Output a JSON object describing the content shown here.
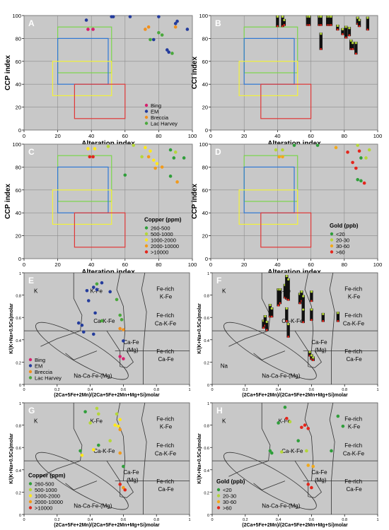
{
  "colors": {
    "panel_bg": "#c8c8c8",
    "grid": "#8c8c8c",
    "box_green": "#7bd64b",
    "box_blue": "#2f78d4",
    "box_yellow": "#f2f23a",
    "box_red": "#e03838",
    "deposits": {
      "Bing": "#d6206e",
      "EM": "#243c9c",
      "Breccia": "#f0901e",
      "Lac Harvey": "#4aa83c"
    },
    "copper": [
      "#2f9e3a",
      "#b5d63a",
      "#ffe81a",
      "#f29a1a",
      "#e3261c"
    ],
    "gold": [
      "#2f9e3a",
      "#b5d63a",
      "#f2a91a",
      "#e3261c"
    ]
  },
  "chart_data": [
    {
      "id": "A",
      "type": "scatter",
      "xlabel": "Alteration index",
      "ylabel": "CCP index",
      "xlim": [
        0,
        100
      ],
      "ylim": [
        0,
        100
      ],
      "xticks": [
        0,
        20,
        40,
        60,
        80,
        100
      ],
      "yticks": [
        0,
        20,
        40,
        60,
        80,
        100
      ],
      "legend_title": "",
      "legend_position": "bottom-right",
      "legend": [
        "Bing",
        "EM",
        "Breccia",
        "Lac Harvey"
      ],
      "points": [
        {
          "x": 38,
          "y": 88,
          "c": "Bing"
        },
        {
          "x": 41,
          "y": 88,
          "c": "Bing"
        },
        {
          "x": 37,
          "y": 96,
          "c": "EM"
        },
        {
          "x": 52,
          "y": 99,
          "c": "EM"
        },
        {
          "x": 53,
          "y": 99,
          "c": "EM"
        },
        {
          "x": 63,
          "y": 99,
          "c": "EM"
        },
        {
          "x": 80,
          "y": 99,
          "c": "EM"
        },
        {
          "x": 90,
          "y": 93,
          "c": "EM"
        },
        {
          "x": 97,
          "y": 88,
          "c": "EM"
        },
        {
          "x": 77,
          "y": 79,
          "c": "EM"
        },
        {
          "x": 85,
          "y": 70,
          "c": "EM"
        },
        {
          "x": 86,
          "y": 68,
          "c": "EM"
        },
        {
          "x": 91,
          "y": 95,
          "c": "EM"
        },
        {
          "x": 72,
          "y": 88,
          "c": "Breccia"
        },
        {
          "x": 74,
          "y": 90,
          "c": "Breccia"
        },
        {
          "x": 90,
          "y": 90,
          "c": "Breccia"
        },
        {
          "x": 80,
          "y": 85,
          "c": "Lac Harvey"
        },
        {
          "x": 82,
          "y": 83,
          "c": "Lac Harvey"
        },
        {
          "x": 75,
          "y": 79,
          "c": "Lac Harvey"
        },
        {
          "x": 88,
          "y": 67,
          "c": "Lac Harvey"
        }
      ]
    },
    {
      "id": "B",
      "type": "bar-scatter",
      "xlabel": "Alteration index",
      "ylabel": "CCI index",
      "xlim": [
        0,
        100
      ],
      "ylim": [
        0,
        100
      ],
      "xticks": [
        0,
        20,
        40,
        60,
        80,
        100
      ],
      "yticks": [
        0,
        20,
        40,
        60,
        80,
        100
      ],
      "bars": [
        {
          "x": 40,
          "y0": 100,
          "y1": 90
        },
        {
          "x": 43,
          "y0": 100,
          "y1": 90
        },
        {
          "x": 44,
          "y0": 97,
          "y1": 91
        },
        {
          "x": 58,
          "y0": 100,
          "y1": 91
        },
        {
          "x": 59,
          "y0": 100,
          "y1": 91
        },
        {
          "x": 65,
          "y0": 100,
          "y1": 91
        },
        {
          "x": 66,
          "y0": 100,
          "y1": 91
        },
        {
          "x": 70,
          "y0": 100,
          "y1": 91
        },
        {
          "x": 71,
          "y0": 100,
          "y1": 91
        },
        {
          "x": 72,
          "y0": 100,
          "y1": 91
        },
        {
          "x": 66,
          "y0": 85,
          "y1": 70
        },
        {
          "x": 76,
          "y0": 92,
          "y1": 87
        },
        {
          "x": 79,
          "y0": 89,
          "y1": 83
        },
        {
          "x": 81,
          "y0": 91,
          "y1": 80
        },
        {
          "x": 83,
          "y0": 90,
          "y1": 82
        },
        {
          "x": 84,
          "y0": 79,
          "y1": 70
        },
        {
          "x": 85,
          "y0": 77,
          "y1": 70
        },
        {
          "x": 87,
          "y0": 77,
          "y1": 66
        },
        {
          "x": 88,
          "y0": 99,
          "y1": 92
        },
        {
          "x": 89,
          "y0": 97,
          "y1": 90
        },
        {
          "x": 94,
          "y0": 99,
          "y1": 87
        }
      ]
    },
    {
      "id": "C",
      "type": "scatter",
      "xlabel": "Alteration index",
      "ylabel": "CCP index",
      "xlim": [
        0,
        100
      ],
      "ylim": [
        0,
        100
      ],
      "xticks": [
        0,
        20,
        40,
        60,
        80,
        100
      ],
      "yticks": [
        0,
        20,
        40,
        60,
        80,
        100
      ],
      "legend_title": "Copper (ppm)",
      "legend_position": "bottom-right",
      "legend": [
        "260-500",
        "500-1000",
        "1000-2000",
        "2000-10000",
        ">10000"
      ],
      "points": [
        {
          "x": 38,
          "y": 96,
          "c": 2
        },
        {
          "x": 42,
          "y": 96,
          "c": 2
        },
        {
          "x": 39,
          "y": 89,
          "c": 4
        },
        {
          "x": 41,
          "y": 89,
          "c": 4
        },
        {
          "x": 50,
          "y": 98,
          "c": 1
        },
        {
          "x": 65,
          "y": 99,
          "c": 1
        },
        {
          "x": 72,
          "y": 97,
          "c": 2
        },
        {
          "x": 75,
          "y": 94,
          "c": 2
        },
        {
          "x": 70,
          "y": 89,
          "c": 1
        },
        {
          "x": 74,
          "y": 89,
          "c": 3
        },
        {
          "x": 77,
          "y": 86,
          "c": 2
        },
        {
          "x": 79,
          "y": 83,
          "c": 2
        },
        {
          "x": 82,
          "y": 80,
          "c": 3
        },
        {
          "x": 87,
          "y": 95,
          "c": 0
        },
        {
          "x": 90,
          "y": 93,
          "c": 1
        },
        {
          "x": 95,
          "y": 88,
          "c": 0
        },
        {
          "x": 89,
          "y": 88,
          "c": 0
        },
        {
          "x": 78,
          "y": 79,
          "c": 3
        },
        {
          "x": 87,
          "y": 72,
          "c": 0
        },
        {
          "x": 91,
          "y": 67,
          "c": 3
        },
        {
          "x": 60,
          "y": 73,
          "c": 0
        }
      ]
    },
    {
      "id": "D",
      "type": "scatter",
      "xlabel": "Alteration index",
      "ylabel": "CCP index",
      "xlim": [
        0,
        100
      ],
      "ylim": [
        0,
        100
      ],
      "xticks": [
        0,
        20,
        40,
        60,
        80,
        100
      ],
      "yticks": [
        0,
        20,
        40,
        60,
        80,
        100
      ],
      "legend_title": "Gold (ppb)",
      "legend_position": "bottom-right",
      "legend": [
        "<20",
        "20-30",
        "30-60",
        ">60"
      ],
      "points": [
        {
          "x": 39,
          "y": 95,
          "c": 1
        },
        {
          "x": 43,
          "y": 95,
          "c": 1
        },
        {
          "x": 41,
          "y": 89,
          "c": 2
        },
        {
          "x": 43,
          "y": 89,
          "c": 2
        },
        {
          "x": 50,
          "y": 99,
          "c": 0
        },
        {
          "x": 64,
          "y": 99,
          "c": 0
        },
        {
          "x": 75,
          "y": 97,
          "c": 2
        },
        {
          "x": 82,
          "y": 93,
          "c": 3
        },
        {
          "x": 89,
          "y": 94,
          "c": 3
        },
        {
          "x": 90,
          "y": 88,
          "c": 0
        },
        {
          "x": 93,
          "y": 88,
          "c": 1
        },
        {
          "x": 85,
          "y": 84,
          "c": 3
        },
        {
          "x": 87,
          "y": 79,
          "c": 3
        },
        {
          "x": 88,
          "y": 69,
          "c": 0
        },
        {
          "x": 90,
          "y": 68,
          "c": 0
        },
        {
          "x": 92,
          "y": 66,
          "c": 3
        },
        {
          "x": 88,
          "y": 99,
          "c": 1
        },
        {
          "x": 95,
          "y": 95,
          "c": 1
        }
      ]
    },
    {
      "id": "E",
      "type": "scatter",
      "xlabel": "(2Ca+5Fe+2Mn)/(2Ca+5Fe+2Mn+Mg+Si)molar",
      "ylabel": "K/(K+Na+0.5Ca)molar",
      "xlim": [
        0,
        1
      ],
      "ylim": [
        0,
        1
      ],
      "xticks": [
        0,
        0.2,
        0.4,
        0.6,
        0.8,
        1
      ],
      "yticks": [
        0,
        0.2,
        0.4,
        0.6,
        0.8,
        1
      ],
      "legend_title": "",
      "legend_position": "bottom-left",
      "legend": [
        "Bing",
        "EM",
        "Breccia",
        "Lac Harvey"
      ],
      "points": [
        {
          "x": 0.58,
          "y": 0.25,
          "c": "Bing"
        },
        {
          "x": 0.6,
          "y": 0.23,
          "c": "Bing"
        },
        {
          "x": 0.38,
          "y": 0.84,
          "c": "EM"
        },
        {
          "x": 0.42,
          "y": 0.87,
          "c": "EM"
        },
        {
          "x": 0.44,
          "y": 0.85,
          "c": "EM"
        },
        {
          "x": 0.47,
          "y": 0.91,
          "c": "EM"
        },
        {
          "x": 0.52,
          "y": 0.83,
          "c": "EM"
        },
        {
          "x": 0.39,
          "y": 0.75,
          "c": "EM"
        },
        {
          "x": 0.43,
          "y": 0.64,
          "c": "EM"
        },
        {
          "x": 0.33,
          "y": 0.55,
          "c": "EM"
        },
        {
          "x": 0.35,
          "y": 0.53,
          "c": "EM"
        },
        {
          "x": 0.36,
          "y": 0.47,
          "c": "EM"
        },
        {
          "x": 0.42,
          "y": 0.45,
          "c": "EM"
        },
        {
          "x": 0.6,
          "y": 0.39,
          "c": "EM"
        },
        {
          "x": 0.44,
          "y": 0.9,
          "c": "Lac Harvey"
        },
        {
          "x": 0.56,
          "y": 0.76,
          "c": "Lac Harvey"
        },
        {
          "x": 0.58,
          "y": 0.62,
          "c": "Lac Harvey"
        },
        {
          "x": 0.59,
          "y": 0.58,
          "c": "Lac Harvey"
        },
        {
          "x": 0.47,
          "y": 0.57,
          "c": "Lac Harvey"
        },
        {
          "x": 0.58,
          "y": 0.5,
          "c": "Breccia"
        },
        {
          "x": 0.6,
          "y": 0.49,
          "c": "Breccia"
        }
      ]
    },
    {
      "id": "F",
      "type": "bar-scatter",
      "xlabel": "(2Ca+5Fe+2Mn)/(2Ca+5Fe+2Mn+Mg+Si)molar",
      "ylabel": "K/(K+Na+0.5Ca)molar",
      "xlim": [
        0,
        1
      ],
      "ylim": [
        0,
        1
      ],
      "xticks": [
        0,
        0.2,
        0.4,
        0.6,
        0.8,
        1
      ],
      "yticks": [
        0,
        0.2,
        0.4,
        0.6,
        0.8,
        1
      ],
      "bars": [
        {
          "x": 0.31,
          "y0": 0.58,
          "y1": 0.5
        },
        {
          "x": 0.32,
          "y0": 0.62,
          "y1": 0.52
        },
        {
          "x": 0.33,
          "y0": 0.57,
          "y1": 0.48
        },
        {
          "x": 0.35,
          "y0": 0.72,
          "y1": 0.6
        },
        {
          "x": 0.36,
          "y0": 0.69,
          "y1": 0.6
        },
        {
          "x": 0.4,
          "y0": 0.86,
          "y1": 0.7
        },
        {
          "x": 0.41,
          "y0": 0.86,
          "y1": 0.72
        },
        {
          "x": 0.44,
          "y0": 0.9,
          "y1": 0.77
        },
        {
          "x": 0.45,
          "y0": 0.98,
          "y1": 0.76
        },
        {
          "x": 0.46,
          "y0": 0.95,
          "y1": 0.75
        },
        {
          "x": 0.46,
          "y0": 0.55,
          "y1": 0.42
        },
        {
          "x": 0.45,
          "y0": 0.69,
          "y1": 0.56
        },
        {
          "x": 0.53,
          "y0": 0.82,
          "y1": 0.72
        },
        {
          "x": 0.54,
          "y0": 0.84,
          "y1": 0.74
        },
        {
          "x": 0.55,
          "y0": 0.8,
          "y1": 0.65
        },
        {
          "x": 0.55,
          "y0": 0.68,
          "y1": 0.55
        },
        {
          "x": 0.6,
          "y0": 0.84,
          "y1": 0.74
        },
        {
          "x": 0.6,
          "y0": 0.68,
          "y1": 0.57
        },
        {
          "x": 0.67,
          "y0": 0.64,
          "y1": 0.56
        },
        {
          "x": 0.76,
          "y0": 0.65,
          "y1": 0.56
        },
        {
          "x": 0.59,
          "y0": 0.3,
          "y1": 0.25
        },
        {
          "x": 0.6,
          "y0": 0.27,
          "y1": 0.22
        },
        {
          "x": 0.61,
          "y0": 0.25,
          "y1": 0.21
        }
      ]
    },
    {
      "id": "G",
      "type": "scatter",
      "xlabel": "(2Ca+5Fe+2Mn)/(2Ca+5Fe+2Mn+Mg+Si)molar",
      "ylabel": "K/(K+Na+0.5Ca)molar",
      "xlim": [
        0,
        1
      ],
      "ylim": [
        0,
        1
      ],
      "xticks": [
        0,
        0.2,
        0.4,
        0.6,
        0.8,
        1
      ],
      "yticks": [
        0,
        0.2,
        0.4,
        0.6,
        0.8,
        1
      ],
      "legend_title": "Copper (ppm)",
      "legend_position": "bottom-left",
      "legend": [
        "260-500",
        "500-1000",
        "1000-2000",
        "2000-10000",
        ">10000"
      ],
      "points": [
        {
          "x": 0.37,
          "y": 0.92,
          "c": 0
        },
        {
          "x": 0.44,
          "y": 0.95,
          "c": 1
        },
        {
          "x": 0.45,
          "y": 0.9,
          "c": 1
        },
        {
          "x": 0.56,
          "y": 0.9,
          "c": 1
        },
        {
          "x": 0.58,
          "y": 0.85,
          "c": 2
        },
        {
          "x": 0.57,
          "y": 0.79,
          "c": 2
        },
        {
          "x": 0.4,
          "y": 0.82,
          "c": 1
        },
        {
          "x": 0.55,
          "y": 0.8,
          "c": 2
        },
        {
          "x": 0.58,
          "y": 0.76,
          "c": 3
        },
        {
          "x": 0.52,
          "y": 0.66,
          "c": 1
        },
        {
          "x": 0.34,
          "y": 0.57,
          "c": 0
        },
        {
          "x": 0.35,
          "y": 0.53,
          "c": 2
        },
        {
          "x": 0.42,
          "y": 0.58,
          "c": 2
        },
        {
          "x": 0.58,
          "y": 0.55,
          "c": 3
        },
        {
          "x": 0.6,
          "y": 0.43,
          "c": 0
        },
        {
          "x": 0.58,
          "y": 0.27,
          "c": 4
        },
        {
          "x": 0.6,
          "y": 0.24,
          "c": 3
        },
        {
          "x": 0.61,
          "y": 0.22,
          "c": 4
        },
        {
          "x": 0.45,
          "y": 0.62,
          "c": 0
        }
      ]
    },
    {
      "id": "H",
      "type": "scatter",
      "xlabel": "(2Ca+5Fe+2Mn)/(2Ca+5Fe+2Mn+Mg+Si)molar",
      "ylabel": "K/(K+Na+0.5Ca)molar",
      "xlim": [
        0,
        1
      ],
      "ylim": [
        0,
        1
      ],
      "xticks": [
        0,
        0.2,
        0.4,
        0.6,
        0.8,
        1
      ],
      "yticks": [
        0,
        0.2,
        0.4,
        0.6,
        0.8,
        1
      ],
      "legend_title": "Gold (ppb)",
      "legend_position": "bottom-left",
      "legend": [
        "<20",
        "20-30",
        "30-60",
        ">60"
      ],
      "points": [
        {
          "x": 0.44,
          "y": 0.96,
          "c": 0
        },
        {
          "x": 0.45,
          "y": 0.86,
          "c": 3
        },
        {
          "x": 0.47,
          "y": 0.83,
          "c": 1
        },
        {
          "x": 0.54,
          "y": 0.78,
          "c": 3
        },
        {
          "x": 0.56,
          "y": 0.8,
          "c": 3
        },
        {
          "x": 0.58,
          "y": 0.77,
          "c": 3
        },
        {
          "x": 0.76,
          "y": 0.88,
          "c": 0
        },
        {
          "x": 0.79,
          "y": 0.79,
          "c": 0
        },
        {
          "x": 0.4,
          "y": 0.82,
          "c": 0
        },
        {
          "x": 0.52,
          "y": 0.66,
          "c": 0
        },
        {
          "x": 0.35,
          "y": 0.57,
          "c": 0
        },
        {
          "x": 0.36,
          "y": 0.55,
          "c": 0
        },
        {
          "x": 0.42,
          "y": 0.56,
          "c": 1
        },
        {
          "x": 0.57,
          "y": 0.57,
          "c": 1
        },
        {
          "x": 0.58,
          "y": 0.44,
          "c": 2
        },
        {
          "x": 0.61,
          "y": 0.43,
          "c": 2
        },
        {
          "x": 0.58,
          "y": 0.27,
          "c": 3
        },
        {
          "x": 0.6,
          "y": 0.24,
          "c": 3
        },
        {
          "x": 0.72,
          "y": 0.57,
          "c": 0
        }
      ]
    }
  ],
  "field_labels": {
    "K": "K",
    "K-Fe": "K-Fe",
    "Fe-rich K-Fe line1": "Fe-rich",
    "Fe-rich K-Fe line2": "K-Fe",
    "Ca-K-Fe": "Ca-K-Fe",
    "Fe-rich Ca-K-Fe line2": "Ca-K-Fe",
    "Ca-Fe": "Ca-Fe",
    "Mg": "(Mg)",
    "Fe-rich Ca-Fe line2": "Ca-Fe",
    "Na-Ca-Fe": "Na-Ca-Fe-(Mg)",
    "Na": "Na"
  }
}
